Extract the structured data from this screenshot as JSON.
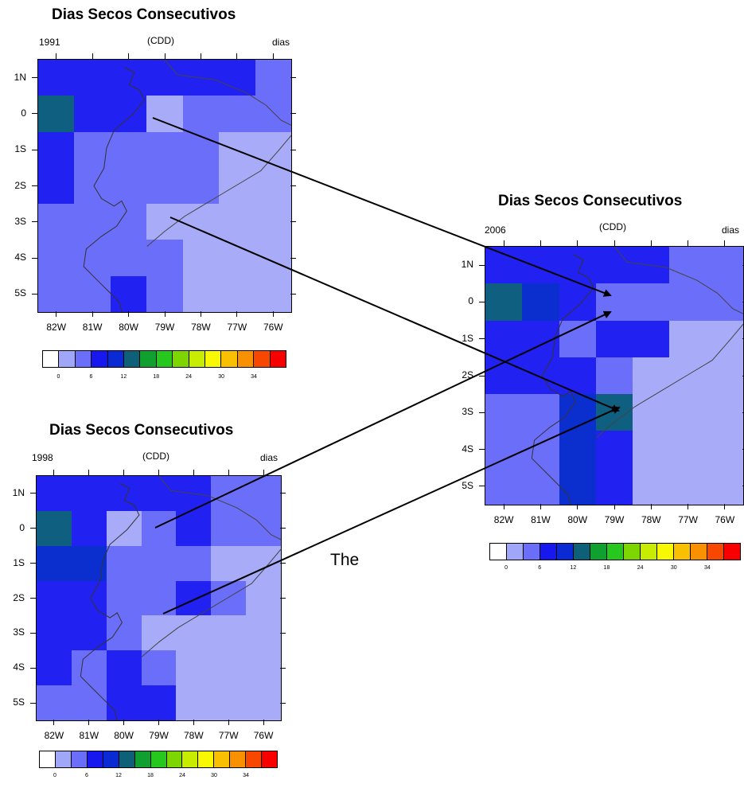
{
  "panels": [
    {
      "title": "Dias Secos Consecutivos",
      "year": "1991",
      "variable": "(CDD)",
      "units": "dias",
      "grid": [
        [
          "b",
          "b",
          "b",
          "b",
          "b",
          "b",
          "m"
        ],
        [
          "t",
          "b",
          "b",
          "l",
          "m",
          "m",
          "m"
        ],
        [
          "b",
          "m",
          "m",
          "m",
          "m",
          "l",
          "l"
        ],
        [
          "b",
          "m",
          "m",
          "m",
          "m",
          "l",
          "l"
        ],
        [
          "m",
          "m",
          "m",
          "l",
          "l",
          "l",
          "l"
        ],
        [
          "m",
          "m",
          "m",
          "m",
          "l",
          "l",
          "l"
        ],
        [
          "m",
          "m",
          "b",
          "m",
          "l",
          "l",
          "l"
        ]
      ]
    },
    {
      "title": "Dias Secos Consecutivos",
      "year": "1998",
      "variable": "(CDD)",
      "units": "dias",
      "grid": [
        [
          "b",
          "b",
          "b",
          "b",
          "b",
          "m",
          "m"
        ],
        [
          "t",
          "b",
          "l",
          "m",
          "b",
          "m",
          "m"
        ],
        [
          "d",
          "d",
          "m",
          "m",
          "m",
          "l",
          "l"
        ],
        [
          "b",
          "b",
          "m",
          "m",
          "b",
          "m",
          "l"
        ],
        [
          "b",
          "b",
          "m",
          "l",
          "l",
          "l",
          "l"
        ],
        [
          "b",
          "m",
          "b",
          "m",
          "l",
          "l",
          "l"
        ],
        [
          "m",
          "m",
          "b",
          "b",
          "l",
          "l",
          "l"
        ]
      ]
    },
    {
      "title": "Dias Secos Consecutivos",
      "year": "2006",
      "variable": "(CDD)",
      "units": "dias",
      "grid": [
        [
          "b",
          "b",
          "b",
          "b",
          "b",
          "m",
          "m"
        ],
        [
          "t",
          "d",
          "b",
          "m",
          "m",
          "m",
          "m"
        ],
        [
          "b",
          "b",
          "m",
          "b",
          "b",
          "l",
          "l"
        ],
        [
          "b",
          "b",
          "b",
          "m",
          "l",
          "l",
          "l"
        ],
        [
          "m",
          "m",
          "d",
          "t",
          "l",
          "l",
          "l"
        ],
        [
          "m",
          "m",
          "d",
          "b",
          "l",
          "l",
          "l"
        ],
        [
          "m",
          "m",
          "d",
          "b",
          "l",
          "l",
          "l"
        ]
      ]
    }
  ],
  "lat_labels": [
    "1N",
    "0",
    "1S",
    "2S",
    "3S",
    "4S",
    "5S"
  ],
  "lon_labels": [
    "82W",
    "81W",
    "80W",
    "79W",
    "78W",
    "77W",
    "76W"
  ],
  "legend": {
    "labels": [
      "0",
      "6",
      "12",
      "18",
      "24",
      "30",
      "34"
    ],
    "colors": [
      "#ffffff",
      "#a0a6f8",
      "#6a6ef8",
      "#1717f0",
      "#0a2ad4",
      "#0e6078",
      "#10a030",
      "#26c81e",
      "#7ed600",
      "#c8ec00",
      "#f8f800",
      "#f8c000",
      "#f89000",
      "#f84800",
      "#f80000"
    ]
  },
  "cell_colors": {
    "b": "#2121f2",
    "d": "#0b2fcf",
    "m": "#6a6ef8",
    "l": "#a8acf8",
    "t": "#0f5f80"
  },
  "annotation": "The"
}
